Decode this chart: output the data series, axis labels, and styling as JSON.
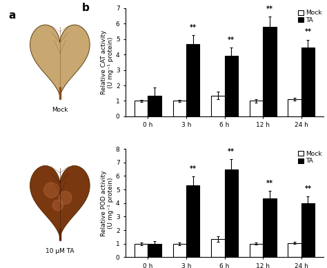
{
  "cat_mock_means": [
    1.0,
    1.0,
    1.35,
    1.0,
    1.1
  ],
  "cat_mock_errs": [
    0.08,
    0.08,
    0.25,
    0.1,
    0.1
  ],
  "cat_ta_means": [
    1.35,
    4.65,
    3.9,
    5.8,
    4.45
  ],
  "cat_ta_errs": [
    0.5,
    0.6,
    0.55,
    0.65,
    0.5
  ],
  "cat_ylim": [
    0,
    7
  ],
  "cat_yticks": [
    0,
    1,
    2,
    3,
    4,
    5,
    6,
    7
  ],
  "cat_ylabel": "Relative CAT activity\n(U mg⁻¹ protein)",
  "pod_mock_means": [
    1.0,
    1.0,
    1.35,
    1.0,
    1.05
  ],
  "pod_mock_errs": [
    0.1,
    0.1,
    0.2,
    0.08,
    0.08
  ],
  "pod_ta_means": [
    1.0,
    5.3,
    6.5,
    4.35,
    4.0
  ],
  "pod_ta_errs": [
    0.2,
    0.65,
    0.75,
    0.55,
    0.5
  ],
  "pod_ylim": [
    0,
    8
  ],
  "pod_yticks": [
    0,
    1,
    2,
    3,
    4,
    5,
    6,
    7,
    8
  ],
  "pod_ylabel": "Relative POD activity\n(U mg⁻¹ protein)",
  "xticklabels": [
    "0 h",
    "3 h",
    "6 h",
    "12 h",
    "24 h"
  ],
  "mock_color": "white",
  "ta_color": "black",
  "mock_edge": "black",
  "ta_edge": "black",
  "bar_width": 0.35,
  "sig_label": "**",
  "label_fontsize": 6.5,
  "tick_fontsize": 6.5,
  "legend_fontsize": 6.5,
  "sig_fontsize": 7,
  "panel_label_fontsize": 11,
  "background": "#ffffff",
  "mock_leaf_base": "#c8a878",
  "mock_leaf_dark": "#b08858",
  "ta_leaf_base": "#7a3808",
  "ta_leaf_dark": "#5a2005",
  "ta_leaf_light": "#c07040"
}
